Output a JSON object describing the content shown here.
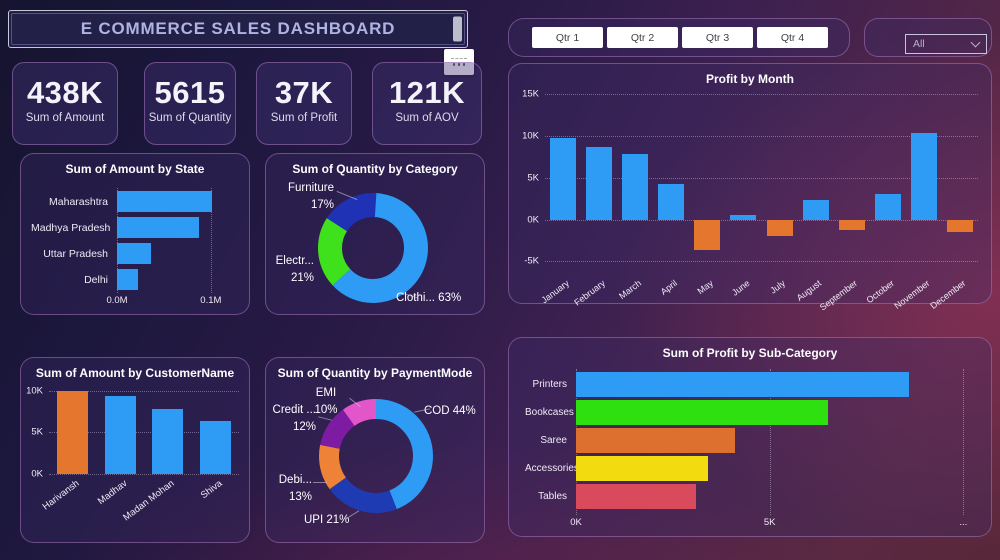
{
  "header": {
    "title": "E COMMERCE SALES DASHBOARD"
  },
  "kpis": [
    {
      "value": "438K",
      "label": "Sum of Amount"
    },
    {
      "value": "5615",
      "label": "Sum of Quantity"
    },
    {
      "value": "37K",
      "label": "Sum of Profit"
    },
    {
      "value": "121K",
      "label": "Sum of AOV"
    }
  ],
  "quarter_slicer": {
    "buttons": [
      {
        "label": "Qtr 1"
      },
      {
        "label": "Qtr 2"
      },
      {
        "label": "Qtr 3"
      },
      {
        "label": "Qtr 4"
      }
    ]
  },
  "filter_dropdown": {
    "selected": "All"
  },
  "chart_data": [
    {
      "key": "amount_by_state",
      "type": "bar",
      "orientation": "horizontal",
      "title": "Sum of Amount by State",
      "categories": [
        "Maharashtra",
        "Madhya Pradesh",
        "Uttar Pradesh",
        "Delhi"
      ],
      "values": [
        0.101,
        0.087,
        0.036,
        0.022
      ],
      "unit": "M",
      "xlim": [
        0,
        0.13
      ],
      "xticks": [
        {
          "v": 0,
          "label": "0.0M"
        },
        {
          "v": 0.1,
          "label": "0.1M"
        }
      ],
      "bar_color": "#2E9BF5",
      "grid": "dotted"
    },
    {
      "key": "quantity_by_category",
      "type": "pie",
      "subtype": "donut",
      "title": "Sum of Quantity by Category",
      "slices": [
        {
          "name": "Clothing",
          "pct": 63,
          "color": "#2E9BF5",
          "label_lines": [
            "Clothi... 63%"
          ]
        },
        {
          "name": "Electronics",
          "pct": 21,
          "color": "#3FE11C",
          "label_lines": [
            "Electr...",
            "21%"
          ]
        },
        {
          "name": "Furniture",
          "pct": 17,
          "color": "#1F31B4",
          "label_lines": [
            "Furniture",
            "17%"
          ]
        }
      ]
    },
    {
      "key": "profit_by_month",
      "type": "bar",
      "orientation": "vertical",
      "title": "Profit by Month",
      "categories": [
        "January",
        "February",
        "March",
        "April",
        "May",
        "June",
        "July",
        "August",
        "September",
        "October",
        "November",
        "December"
      ],
      "values": [
        9.8,
        8.7,
        7.9,
        4.3,
        -3.6,
        0.6,
        -2.0,
        2.3,
        -1.3,
        3.1,
        10.4,
        -1.5
      ],
      "unit": "K",
      "ylim": [
        -6.5,
        15.5
      ],
      "yticks": [
        {
          "v": 15,
          "label": "15K"
        },
        {
          "v": 10,
          "label": "10K"
        },
        {
          "v": 5,
          "label": "5K"
        },
        {
          "v": 0,
          "label": "0K"
        },
        {
          "v": -5,
          "label": "-5K"
        }
      ],
      "positive_color": "#2E9BF5",
      "negative_color": "#E5762D",
      "grid": "dotted"
    },
    {
      "key": "amount_by_customer",
      "type": "bar",
      "orientation": "vertical",
      "title": "Sum of Amount by CustomerName",
      "categories": [
        "Harivansh",
        "Madhav",
        "Madan Mohan",
        "Shiva"
      ],
      "values": [
        10.0,
        9.4,
        7.8,
        6.4
      ],
      "unit": "K",
      "ylim": [
        0,
        10.8
      ],
      "yticks": [
        {
          "v": 10,
          "label": "10K"
        },
        {
          "v": 5,
          "label": "5K"
        },
        {
          "v": 0,
          "label": "0K"
        }
      ],
      "colors": [
        "#E5762D",
        "#2E9BF5",
        "#2E9BF5",
        "#2E9BF5"
      ],
      "grid": "dotted"
    },
    {
      "key": "quantity_by_paymentmode",
      "type": "pie",
      "subtype": "donut",
      "title": "Sum of Quantity by PaymentMode",
      "slices": [
        {
          "name": "COD",
          "pct": 44,
          "color": "#2E9BF5",
          "label_lines": [
            "COD 44%"
          ]
        },
        {
          "name": "UPI",
          "pct": 21,
          "color": "#1F3BB4",
          "label_lines": [
            "UPI 21%"
          ]
        },
        {
          "name": "Debit Card",
          "pct": 13,
          "color": "#EE8338",
          "label_lines": [
            "Debi...",
            "13%"
          ]
        },
        {
          "name": "Credit Card",
          "pct": 12,
          "color": "#7D1CA3",
          "label_lines": [
            "Credit ...",
            "12%"
          ]
        },
        {
          "name": "EMI",
          "pct": 10,
          "color": "#E356C9",
          "label_lines": [
            "EMI",
            "10%"
          ]
        }
      ]
    },
    {
      "key": "profit_by_subcategory",
      "type": "bar",
      "orientation": "horizontal",
      "title": "Sum of Profit by Sub-Category",
      "categories": [
        "Printers",
        "Bookcases",
        "Saree",
        "Accessories",
        "Tables"
      ],
      "values": [
        8.6,
        6.5,
        4.1,
        3.4,
        3.1
      ],
      "unit": "K",
      "xlim": [
        0,
        10.3
      ],
      "xticks": [
        {
          "v": 0,
          "label": "0K"
        },
        {
          "v": 5,
          "label": "5K"
        },
        {
          "v": 10,
          "label": "..."
        }
      ],
      "colors": [
        "#2E9BF5",
        "#2EE00F",
        "#DD6F2F",
        "#F2DC10",
        "#D84A5C"
      ],
      "grid": "dotted"
    }
  ]
}
